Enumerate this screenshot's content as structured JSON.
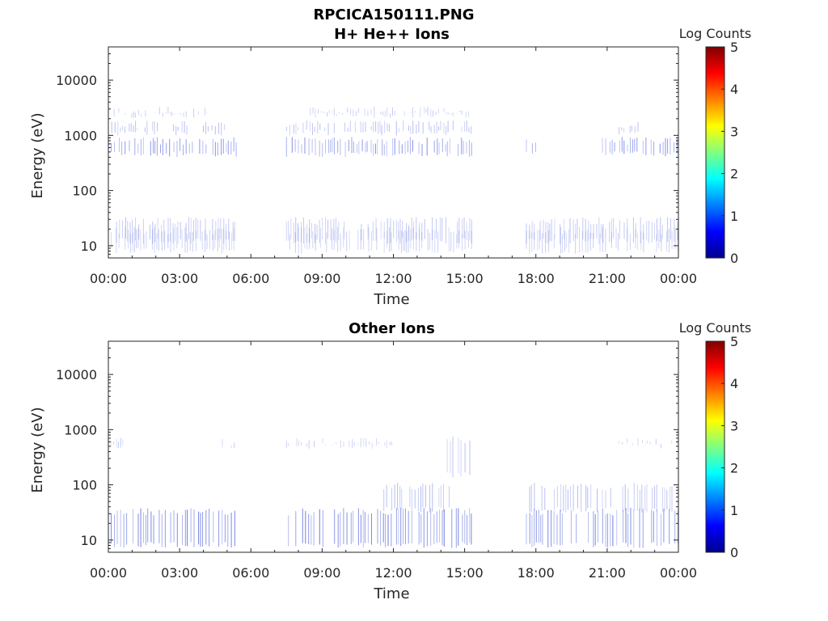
{
  "figure": {
    "title": "RPCICA150111.PNG"
  },
  "colors": {
    "jet": [
      "#00008f",
      "#0000ff",
      "#0080ff",
      "#00ffff",
      "#80ff80",
      "#ffff00",
      "#ff8000",
      "#ff0000",
      "#800000"
    ],
    "data_color": "#3a4fd6",
    "axis": "#262626"
  },
  "chart_data": [
    {
      "type": "heatmap",
      "title": "H+ He++ Ions",
      "xlabel": "Time",
      "ylabel": "Energy (eV)",
      "x_ticks": [
        "00:00",
        "03:00",
        "06:00",
        "09:00",
        "12:00",
        "15:00",
        "18:00",
        "21:00",
        "00:00"
      ],
      "x_range_hours": [
        0,
        24
      ],
      "y_scale": "log",
      "y_ticks": [
        "10",
        "100",
        "1000",
        "10000"
      ],
      "y_range": [
        6,
        40000
      ],
      "colorbar": {
        "label": "Log Counts",
        "ticks": [
          "0",
          "1",
          "2",
          "3",
          "4",
          "5"
        ],
        "range": [
          0,
          5
        ],
        "colormap": "jet"
      },
      "data_segments_hours": [
        [
          0.0,
          5.4
        ],
        [
          7.5,
          15.3
        ],
        [
          17.6,
          24.0
        ]
      ],
      "energy_bands": [
        {
          "emin": 450,
          "emax": 850,
          "log_counts": 1.0,
          "hours": [
            [
              0.0,
              5.4
            ],
            [
              7.5,
              15.3
            ],
            [
              17.6,
              18.0
            ],
            [
              20.8,
              24.0
            ]
          ]
        },
        {
          "emin": 1100,
          "emax": 1700,
          "log_counts": 0.5,
          "hours": [
            [
              0.0,
              3.5
            ],
            [
              4.0,
              5.0
            ],
            [
              7.5,
              15.3
            ],
            [
              21.5,
              22.3
            ]
          ]
        },
        {
          "emin": 2300,
          "emax": 3000,
          "log_counts": 0.3,
          "hours": [
            [
              0.0,
              4.2
            ],
            [
              8.5,
              15.3
            ]
          ]
        },
        {
          "emin": 12,
          "emax": 30,
          "log_counts": 0.4,
          "hours": [
            [
              0.0,
              5.4
            ],
            [
              7.5,
              15.3
            ],
            [
              17.6,
              24.0
            ]
          ]
        },
        {
          "emin": 8,
          "emax": 20,
          "log_counts": 0.3,
          "hours": [
            [
              0.0,
              5.4
            ],
            [
              7.5,
              15.3
            ],
            [
              17.6,
              24.0
            ]
          ]
        }
      ]
    },
    {
      "type": "heatmap",
      "title": "Other Ions",
      "xlabel": "Time",
      "ylabel": "Energy (eV)",
      "x_ticks": [
        "00:00",
        "03:00",
        "06:00",
        "09:00",
        "12:00",
        "15:00",
        "18:00",
        "21:00",
        "00:00"
      ],
      "x_range_hours": [
        0,
        24
      ],
      "y_scale": "log",
      "y_ticks": [
        "10",
        "100",
        "1000",
        "10000"
      ],
      "y_range": [
        6,
        40000
      ],
      "colorbar": {
        "label": "Log Counts",
        "ticks": [
          "0",
          "1",
          "2",
          "3",
          "4",
          "5"
        ],
        "range": [
          0,
          5
        ],
        "colormap": "jet"
      },
      "data_segments_hours": [
        [
          0.0,
          5.4
        ],
        [
          7.5,
          15.3
        ],
        [
          17.6,
          24.0
        ]
      ],
      "energy_bands": [
        {
          "emin": 8,
          "emax": 35,
          "log_counts": 1.2,
          "hours": [
            [
              0.0,
              5.4
            ],
            [
              7.5,
              15.3
            ],
            [
              17.6,
              24.0
            ]
          ]
        },
        {
          "emin": 35,
          "emax": 100,
          "log_counts": 0.5,
          "hours": [
            [
              11.5,
              14.5
            ],
            [
              17.6,
              24.0
            ]
          ]
        },
        {
          "emin": 500,
          "emax": 650,
          "log_counts": 0.3,
          "hours": [
            [
              0.0,
              0.7
            ],
            [
              4.8,
              5.4
            ],
            [
              7.5,
              12.0
            ],
            [
              21.5,
              24.0
            ]
          ]
        },
        {
          "emin": 150,
          "emax": 700,
          "log_counts": 0.4,
          "hours": [
            [
              14.2,
              15.3
            ]
          ]
        }
      ]
    }
  ]
}
